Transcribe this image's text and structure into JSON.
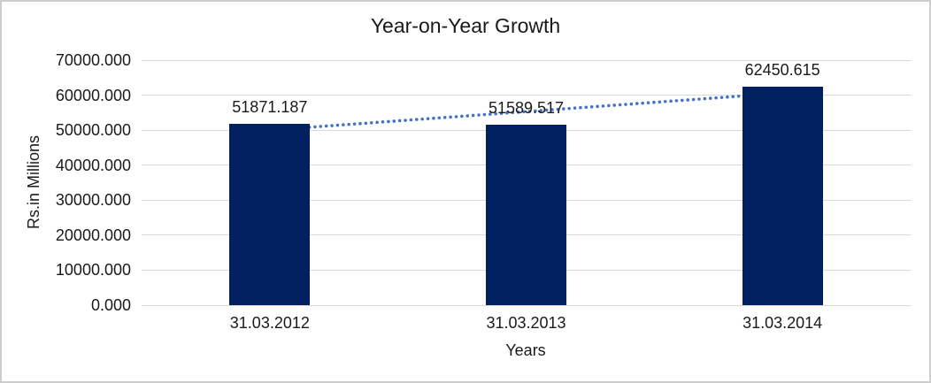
{
  "chart_data": {
    "type": "bar",
    "title": "Year-on-Year Growth",
    "categories": [
      "31.03.2012",
      "31.03.2013",
      "31.03.2014"
    ],
    "values": [
      51871.187,
      51589.517,
      62450.615
    ],
    "data_labels": [
      "51871.187",
      "51589.517",
      "62450.615"
    ],
    "xlabel": "Years",
    "ylabel": "Rs.in Millions",
    "ylim": [
      0,
      70000
    ],
    "ytick_step": 10000,
    "ytick_labels": [
      "0.000",
      "10000.000",
      "20000.000",
      "30000.000",
      "40000.000",
      "50000.000",
      "60000.000",
      "70000.000"
    ],
    "grid": true,
    "legend": "none",
    "trendline": {
      "type": "linear",
      "style": "dotted"
    },
    "colors": {
      "bar": "#002060",
      "trendline": "#4472c4",
      "gridline": "#d9d9d9",
      "text": "#1a1a1a",
      "background": "#ffffff",
      "frame_border": "#cdcdcd"
    }
  }
}
